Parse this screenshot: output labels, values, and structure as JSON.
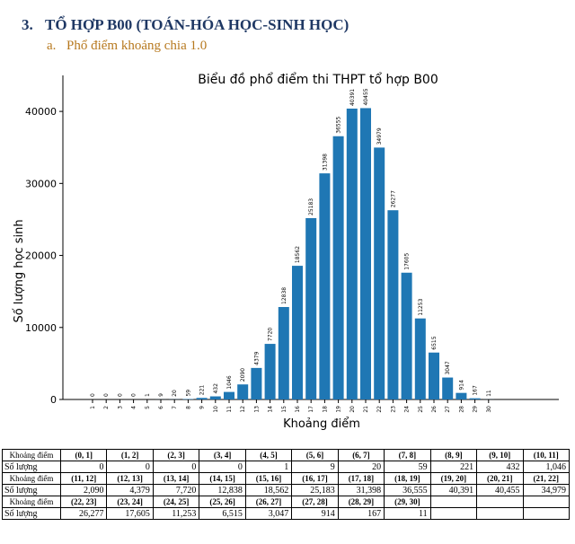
{
  "section": {
    "number": "3.",
    "title": "TỔ HỢP B00 (TOÁN-HÓA HỌC-SINH HỌC)"
  },
  "subsection": {
    "number": "a.",
    "title": "Phổ điểm khoảng chia 1.0"
  },
  "chart_data": {
    "type": "bar",
    "title": "Biểu đồ phổ điểm thi THPT tổ hợp B00",
    "xlabel": "Khoảng điểm",
    "ylabel": "Số lượng học sinh",
    "categories": [
      "1",
      "2",
      "3",
      "4",
      "5",
      "6",
      "7",
      "8",
      "9",
      "10",
      "11",
      "12",
      "13",
      "14",
      "15",
      "16",
      "17",
      "18",
      "19",
      "20",
      "21",
      "22",
      "23",
      "24",
      "25",
      "26",
      "27",
      "28",
      "29",
      "30"
    ],
    "values": [
      0,
      0,
      0,
      0,
      1,
      9,
      20,
      59,
      221,
      432,
      1046,
      2090,
      4379,
      7720,
      12838,
      18562,
      25183,
      31398,
      36555,
      40391,
      40455,
      34979,
      26277,
      17605,
      11253,
      6515,
      3047,
      914,
      167,
      11
    ],
    "bar_labels": [
      "0",
      "0",
      "0",
      "0",
      "1",
      "9",
      "20",
      "59",
      "221",
      "432",
      "1046",
      "2090",
      "4379",
      "7720",
      "12838",
      "18562",
      "25183",
      "31398",
      "36555",
      "40391",
      "40455",
      "34979",
      "26277",
      "17605",
      "11253",
      "6515",
      "3047",
      "914",
      "167",
      "11"
    ],
    "ylim": [
      0,
      45000
    ],
    "yticks": [
      "0",
      "10000",
      "20000",
      "30000",
      "40000"
    ],
    "ytick_values": [
      0,
      10000,
      20000,
      30000,
      40000
    ],
    "grid": false,
    "bar_color": "#1f77b4"
  },
  "table": {
    "header_label": "Khoảng điểm",
    "count_label": "Số lượng",
    "rows": [
      {
        "ranges": [
          "(0, 1]",
          "(1, 2]",
          "(2, 3]",
          "(3, 4]",
          "(4, 5]",
          "(5, 6]",
          "(6, 7]",
          "(7, 8]",
          "(8, 9]",
          "(9, 10]",
          "(10, 11]"
        ],
        "counts": [
          "0",
          "0",
          "0",
          "0",
          "1",
          "9",
          "20",
          "59",
          "221",
          "432",
          "1,046"
        ]
      },
      {
        "ranges": [
          "(11, 12]",
          "(12, 13]",
          "(13, 14]",
          "(14, 15]",
          "(15, 16]",
          "(16, 17]",
          "(17, 18]",
          "(18, 19]",
          "(19, 20]",
          "(20, 21]",
          "(21, 22]"
        ],
        "counts": [
          "2,090",
          "4,379",
          "7,720",
          "12,838",
          "18,562",
          "25,183",
          "31,398",
          "36,555",
          "40,391",
          "40,455",
          "34,979"
        ]
      },
      {
        "ranges": [
          "(22, 23]",
          "(23, 24]",
          "(24, 25]",
          "(25, 26]",
          "(26, 27]",
          "(27, 28]",
          "(28, 29]",
          "(29, 30]",
          "",
          "",
          ""
        ],
        "counts": [
          "26,277",
          "17,605",
          "11,253",
          "6,515",
          "3,047",
          "914",
          "167",
          "11",
          "",
          "",
          ""
        ]
      }
    ]
  }
}
